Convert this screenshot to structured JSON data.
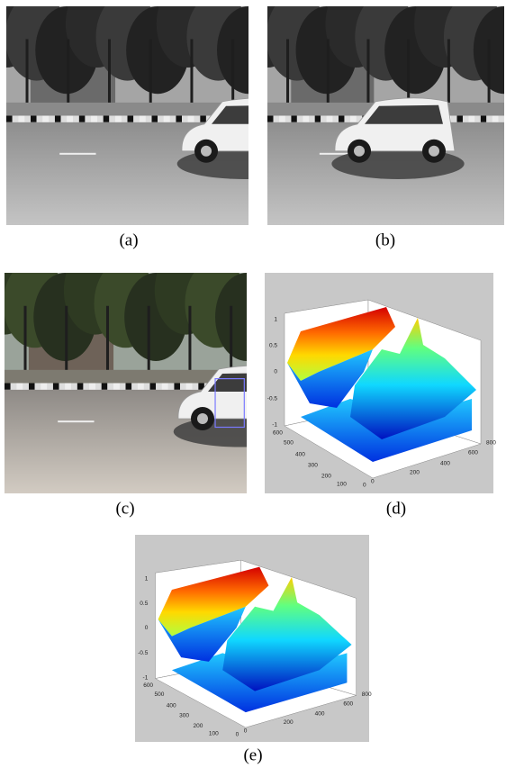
{
  "panels": [
    {
      "label": "(a)"
    },
    {
      "label": "(b)"
    },
    {
      "label": "(c)"
    },
    {
      "label": "(d)"
    },
    {
      "label": "(e)"
    }
  ],
  "plots": {
    "d": {
      "zticks": [
        "1",
        "0.5",
        "0",
        "-0.5",
        "-1"
      ],
      "yticks": [
        "600",
        "500",
        "400",
        "300",
        "200",
        "100",
        "0"
      ],
      "xticks": [
        "0",
        "200",
        "400",
        "600",
        "800"
      ]
    },
    "e": {
      "zticks": [
        "1",
        "0.5",
        "0",
        "-0.5",
        "-1"
      ],
      "yticks": [
        "600",
        "500",
        "400",
        "300",
        "200",
        "100",
        "0"
      ],
      "xticks": [
        "0",
        "200",
        "400",
        "600",
        "800"
      ]
    }
  }
}
